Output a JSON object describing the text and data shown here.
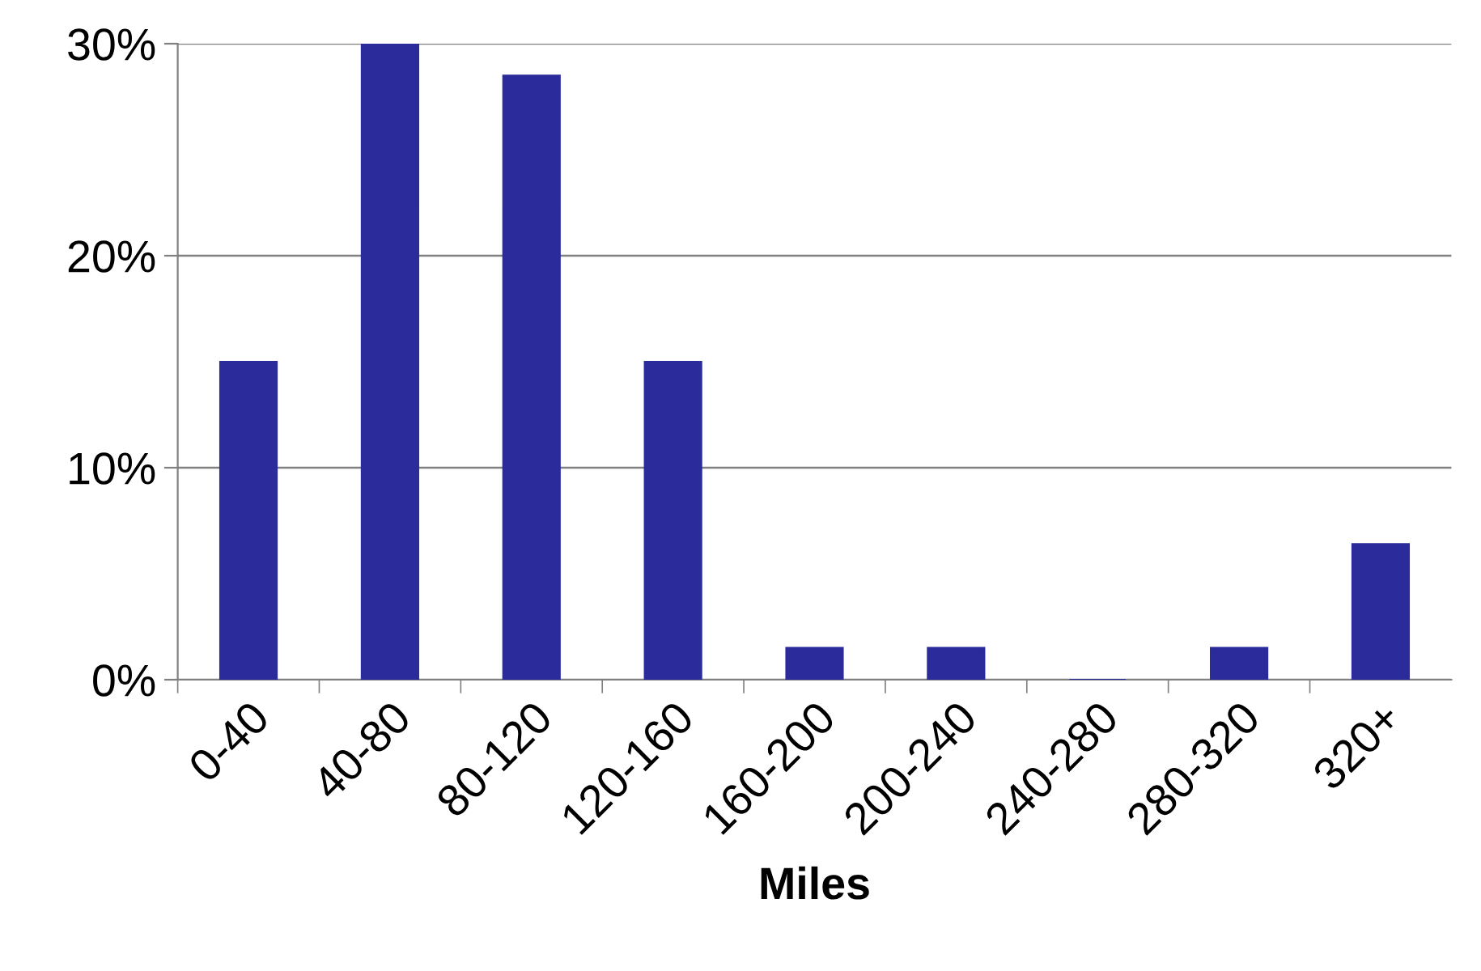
{
  "chart_data": {
    "type": "bar",
    "xlabel": "Miles",
    "categories": [
      "0-40",
      "40-80",
      "80-120",
      "120-160",
      "160-200",
      "200-240",
      "240-280",
      "280-320",
      "320+"
    ],
    "values": [
      15,
      30,
      28.5,
      15,
      1.5,
      1.5,
      0,
      1.5,
      6.4
    ],
    "color": "#2b2b9c",
    "ylim": [
      0,
      30
    ],
    "yticks": [
      {
        "value": 0,
        "label": "0%"
      },
      {
        "value": 10,
        "label": "10%"
      },
      {
        "value": 20,
        "label": "20%"
      },
      {
        "value": 30,
        "label": "30%"
      }
    ],
    "grid": "y"
  }
}
